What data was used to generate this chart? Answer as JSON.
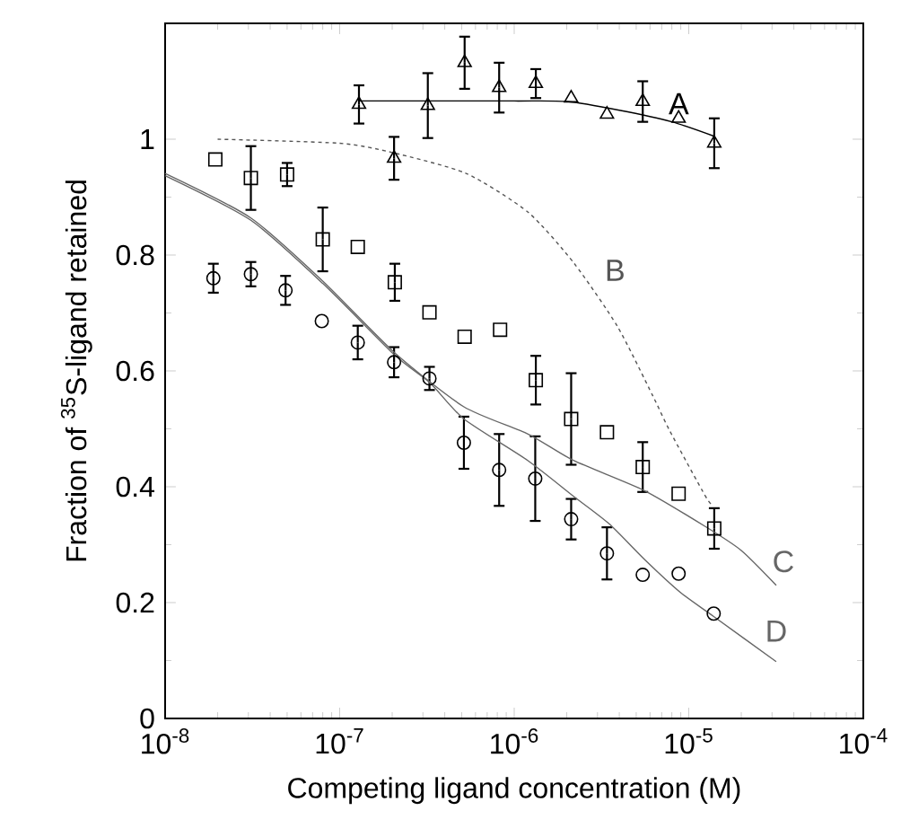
{
  "chart_data": {
    "type": "scatter",
    "xlabel": "Competing ligand concentration (M)",
    "ylabel": "Fraction of $^{35}$S-ligand retained",
    "log": "x",
    "xlim": [
      1e-08,
      0.0001
    ],
    "ylim": [
      0,
      1.2
    ],
    "xticks": [
      {
        "value": 1e-08,
        "label": "10$^{-8}$"
      },
      {
        "value": 1e-07,
        "label": "10$^{-7}$"
      },
      {
        "value": 1e-06,
        "label": "10$^{-6}$"
      },
      {
        "value": 1e-05,
        "label": "10$^{-5}$"
      },
      {
        "value": 0.0001,
        "label": "10$^{-4}$"
      }
    ],
    "yticks": [
      0,
      0.2,
      0.4,
      0.6,
      0.8,
      1
    ],
    "grid": false,
    "series": [
      {
        "marker": "triangle",
        "color": "#000000",
        "x": [
          1.29e-07,
          3.2e-07,
          5.2e-07,
          8.2e-07,
          1.33e-06,
          2.12e-06,
          3.4e-06,
          5.45e-06,
          8.75e-06,
          1.4e-05,
          2.05e-07
        ],
        "values": [
          1.06,
          1.058,
          1.132,
          1.089,
          1.096,
          1.071,
          1.043,
          1.065,
          1.036,
          0.993,
          0.967
        ],
        "errors": [
          0.033,
          0.056,
          0.045,
          0.043,
          0.025,
          null,
          null,
          0.035,
          null,
          0.043,
          0.037
        ]
      },
      {
        "marker": "square",
        "color": "#000000",
        "x": [
          1.94e-08,
          3.1e-08,
          5e-08,
          8e-08,
          1.27e-07,
          2.07e-07,
          3.27e-07,
          5.2e-07,
          8.3e-07,
          1.33e-06,
          2.12e-06,
          3.4e-06,
          5.45e-06,
          8.75e-06,
          1.4e-05
        ],
        "values": [
          0.965,
          0.933,
          0.939,
          0.827,
          0.814,
          0.753,
          0.701,
          0.659,
          0.671,
          0.584,
          0.517,
          0.494,
          0.434,
          0.388,
          0.328
        ],
        "errors": [
          null,
          0.055,
          0.02,
          0.055,
          null,
          0.032,
          null,
          null,
          null,
          0.042,
          0.079,
          null,
          0.043,
          null,
          0.035
        ]
      },
      {
        "marker": "circle",
        "color": "#000000",
        "x": [
          1.89e-08,
          3.1e-08,
          4.9e-08,
          7.9e-08,
          1.27e-07,
          2.05e-07,
          3.27e-07,
          5.15e-07,
          8.2e-07,
          1.32e-06,
          2.12e-06,
          3.4e-06,
          5.45e-06,
          8.75e-06,
          1.39e-05
        ],
        "values": [
          0.76,
          0.767,
          0.739,
          0.686,
          0.649,
          0.615,
          0.587,
          0.476,
          0.429,
          0.414,
          0.344,
          0.285,
          0.248,
          0.25,
          0.181
        ],
        "errors": [
          0.025,
          0.021,
          0.025,
          null,
          0.029,
          0.026,
          0.02,
          0.045,
          0.062,
          0.073,
          0.035,
          0.045,
          null,
          null,
          null
        ]
      },
      {
        "type": "line",
        "name": "A",
        "marker": "none",
        "line_style": "solid",
        "color": "#000000",
        "x": [
          1.3e-07,
          1e-06,
          2e-06,
          4e-06,
          8e-06,
          1.4e-05
        ],
        "values": [
          1.066,
          1.066,
          1.065,
          1.05,
          1.03,
          1.005
        ]
      },
      {
        "type": "line",
        "name": "B",
        "marker": "none",
        "line_style": "dashed",
        "color": "#555555",
        "x": [
          2e-08,
          1e-07,
          2e-07,
          5.3e-07,
          1.2e-06,
          2.2e-06,
          3.9e-06,
          6.2e-06,
          7.8e-06,
          1.25e-05,
          1.38e-05
        ],
        "values": [
          1.0,
          0.993,
          0.977,
          0.941,
          0.874,
          0.786,
          0.677,
          0.558,
          0.496,
          0.383,
          0.367
        ]
      },
      {
        "type": "line",
        "name": "C",
        "marker": "none",
        "line_style": "solid",
        "color": "#666666",
        "x": [
          1e-08,
          3.1e-08,
          8e-08,
          2.07e-07,
          5.15e-07,
          1.2e-06,
          2.2e-06,
          5.6e-06,
          1.25e-05,
          2e-05,
          3.17e-05
        ],
        "values": [
          0.941,
          0.864,
          0.755,
          0.631,
          0.538,
          0.491,
          0.445,
          0.393,
          0.331,
          0.29,
          0.23
        ]
      },
      {
        "type": "line",
        "name": "D",
        "marker": "none",
        "line_style": "solid",
        "color": "#666666",
        "x": [
          1e-08,
          3.1e-08,
          8e-08,
          2.07e-07,
          3.3e-07,
          5.15e-07,
          1.2e-06,
          2.2e-06,
          3.5e-06,
          5.6e-06,
          9e-06,
          1.39e-05,
          3.17e-05
        ],
        "values": [
          0.937,
          0.86,
          0.751,
          0.627,
          0.579,
          0.517,
          0.445,
          0.383,
          0.336,
          0.274,
          0.217,
          0.176,
          0.098
        ]
      }
    ]
  }
}
